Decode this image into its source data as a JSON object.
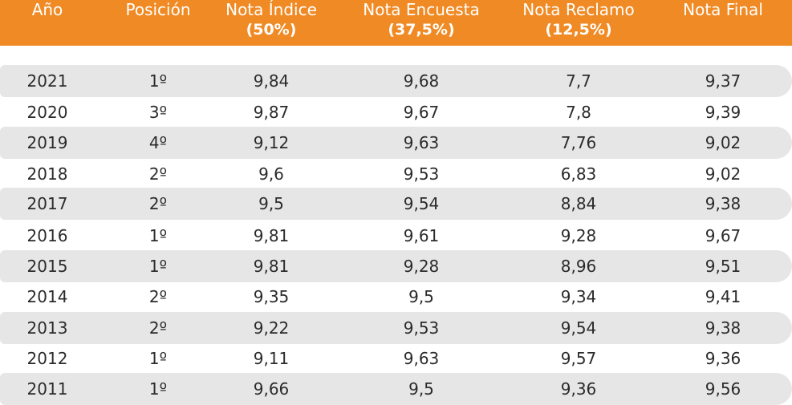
{
  "colors": {
    "header_bg": "#f08a24",
    "header_text": "#ffffff",
    "row_shade": "#e6e6e6",
    "text": "#2b2b2b"
  },
  "headers": [
    {
      "main": "Año",
      "sub": ""
    },
    {
      "main": "Posición",
      "sub": ""
    },
    {
      "main": "Nota Índice",
      "sub": "(50%)"
    },
    {
      "main": "Nota Encuesta",
      "sub": "(37,5%)"
    },
    {
      "main": "Nota Reclamo",
      "sub": "(12,5%)"
    },
    {
      "main": "Nota Final",
      "sub": ""
    }
  ],
  "rows": [
    [
      "2021",
      "1º",
      "9,84",
      "9,68",
      "7,7",
      "9,37"
    ],
    [
      "2020",
      "3º",
      "9,87",
      "9,67",
      "7,8",
      "9,39"
    ],
    [
      "2019",
      "4º",
      "9,12",
      "9,63",
      "7,76",
      "9,02"
    ],
    [
      "2018",
      "2º",
      "9,6",
      "9,53",
      "6,83",
      "9,02"
    ],
    [
      "2017",
      "2º",
      "9,5",
      "9,54",
      "8,84",
      "9,38"
    ],
    [
      "2016",
      "1º",
      "9,81",
      "9,61",
      "9,28",
      "9,67"
    ],
    [
      "2015",
      "1º",
      "9,81",
      "9,28",
      "8,96",
      "9,51"
    ],
    [
      "2014",
      "2º",
      "9,35",
      "9,5",
      "9,34",
      "9,41"
    ],
    [
      "2013",
      "2º",
      "9,22",
      "9,53",
      "9,54",
      "9,38"
    ],
    [
      "2012",
      "1º",
      "9,11",
      "9,63",
      "9,57",
      "9,36"
    ],
    [
      "2011",
      "1º",
      "9,66",
      "9,5",
      "9,36",
      "9,56"
    ]
  ]
}
